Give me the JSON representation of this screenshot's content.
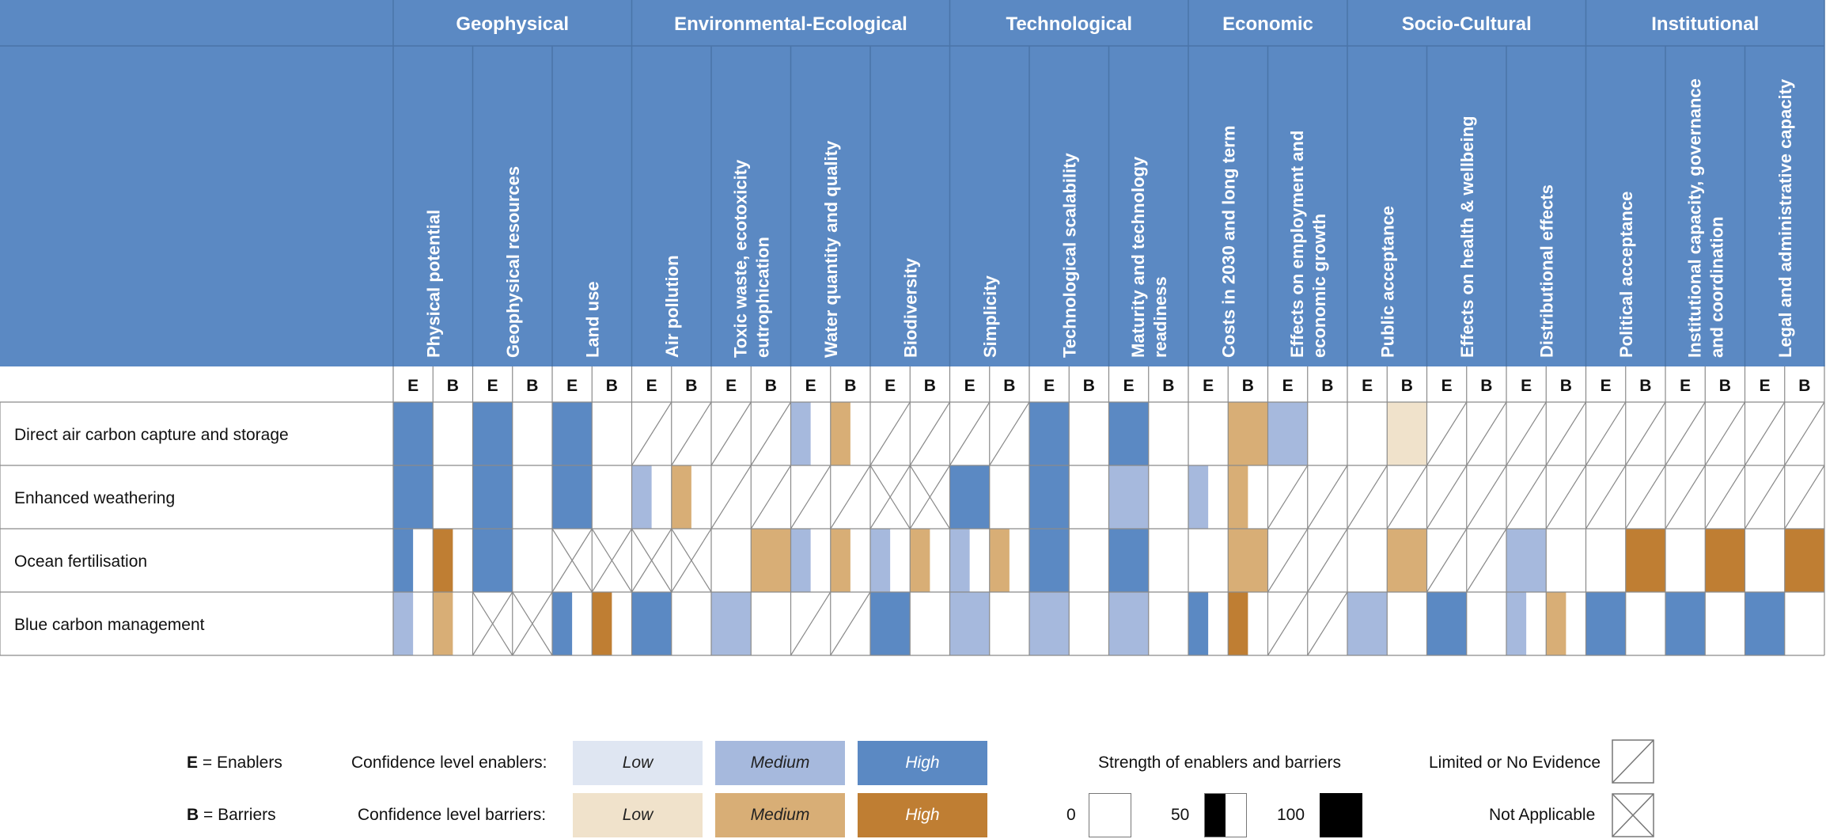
{
  "colors": {
    "header_bg": "#5b89c3",
    "header_line": "#4a74a8",
    "enabler": {
      "low": "#dfe6f2",
      "medium": "#a6b9dd",
      "high": "#5b89c3"
    },
    "barrier": {
      "low": "#f0e2cb",
      "medium": "#d8ae76",
      "high": "#bf7e33"
    },
    "grid": "#8a8a8a"
  },
  "eb_labels": {
    "e": "E",
    "b": "B"
  },
  "groups": [
    {
      "name": "Geophysical",
      "span": 3
    },
    {
      "name": "Environmental-Ecological",
      "span": 4
    },
    {
      "name": "Technological",
      "span": 3
    },
    {
      "name": "Economic",
      "span": 2
    },
    {
      "name": "Socio-Cultural",
      "span": 3
    },
    {
      "name": "Institutional",
      "span": 3
    }
  ],
  "columns": [
    [
      "Physical potential"
    ],
    [
      "Geophysical resources"
    ],
    [
      "Land use"
    ],
    [
      "Air pollution"
    ],
    [
      "Toxic waste, ecotoxicity",
      "eutrophication"
    ],
    [
      "Water quantity and quality"
    ],
    [
      "Biodiversity"
    ],
    [
      "Simplicity"
    ],
    [
      "Technological scalability"
    ],
    [
      "Maturity and technology",
      "readiness"
    ],
    [
      "Costs in 2030 and long term"
    ],
    [
      "Effects on employment  and",
      "economic growth"
    ],
    [
      "Public acceptance"
    ],
    [
      "Effects on health & wellbeing"
    ],
    [
      "Distributional effects"
    ],
    [
      "Political acceptance"
    ],
    [
      "Institutional capacity, governance",
      "and coordination"
    ],
    [
      "Legal and administrative capacity"
    ]
  ],
  "rows": [
    {
      "label": "Direct air carbon capture and storage",
      "cells": [
        [
          "H100",
          "0"
        ],
        [
          "H100",
          "0"
        ],
        [
          "H100",
          "0"
        ],
        [
          "L",
          "L"
        ],
        [
          "L",
          "L"
        ],
        [
          "M50",
          "M50"
        ],
        [
          "L",
          "L"
        ],
        [
          "L",
          "L"
        ],
        [
          "H100",
          "0"
        ],
        [
          "H100",
          "0"
        ],
        [
          "0",
          "M100"
        ],
        [
          "M100",
          "0"
        ],
        [
          "0",
          "L100"
        ],
        [
          "L",
          "L"
        ],
        [
          "L",
          "L"
        ],
        [
          "L",
          "L"
        ],
        [
          "L",
          "L"
        ],
        [
          "L",
          "L"
        ]
      ]
    },
    {
      "label": "Enhanced weathering",
      "cells": [
        [
          "H100",
          "0"
        ],
        [
          "H100",
          "0"
        ],
        [
          "H100",
          "0"
        ],
        [
          "M50",
          "M50"
        ],
        [
          "L",
          "L"
        ],
        [
          "L",
          "L"
        ],
        [
          "N",
          "N"
        ],
        [
          "H100",
          "0"
        ],
        [
          "H100",
          "0"
        ],
        [
          "M100",
          "0"
        ],
        [
          "M50",
          "M50"
        ],
        [
          "L",
          "L"
        ],
        [
          "L",
          "L"
        ],
        [
          "L",
          "L"
        ],
        [
          "L",
          "L"
        ],
        [
          "L",
          "L"
        ],
        [
          "L",
          "L"
        ],
        [
          "L",
          "L"
        ]
      ]
    },
    {
      "label": "Ocean fertilisation",
      "cells": [
        [
          "H50",
          "H50"
        ],
        [
          "H100",
          "0"
        ],
        [
          "N",
          "N"
        ],
        [
          "N",
          "N"
        ],
        [
          "0",
          "M100"
        ],
        [
          "M50",
          "M50"
        ],
        [
          "M50",
          "M50"
        ],
        [
          "M50",
          "M50"
        ],
        [
          "H100",
          "0"
        ],
        [
          "H100",
          "0"
        ],
        [
          "0",
          "M100"
        ],
        [
          "L",
          "L"
        ],
        [
          "0",
          "M100"
        ],
        [
          "L",
          "L"
        ],
        [
          "M100",
          "0"
        ],
        [
          "0",
          "H100"
        ],
        [
          "0",
          "H100"
        ],
        [
          "0",
          "H100"
        ]
      ]
    },
    {
      "label": "Blue carbon management",
      "cells": [
        [
          "M50",
          "M50"
        ],
        [
          "N",
          "N"
        ],
        [
          "H50",
          "H50"
        ],
        [
          "H100",
          "0"
        ],
        [
          "M100",
          "0"
        ],
        [
          "L",
          "L"
        ],
        [
          "H100",
          "0"
        ],
        [
          "M100",
          "0"
        ],
        [
          "M100",
          "0"
        ],
        [
          "M100",
          "0"
        ],
        [
          "H50",
          "H50"
        ],
        [
          "L",
          "L"
        ],
        [
          "M100",
          "0"
        ],
        [
          "H100",
          "0"
        ],
        [
          "M50",
          "M50"
        ],
        [
          "H100",
          "0"
        ],
        [
          "H100",
          "0"
        ],
        [
          "H100",
          "0"
        ]
      ]
    }
  ],
  "legend": {
    "e_key": "E",
    "e_text": " = Enablers",
    "b_key": "B",
    "b_text": " = Barriers",
    "conf_enablers": "Confidence level enablers:",
    "conf_barriers": "Confidence level barriers:",
    "low": "Low",
    "medium": "Medium",
    "high": "High",
    "strength_title": "Strength of enablers and barriers",
    "s0": "0",
    "s50": "50",
    "s100": "100",
    "limited": "Limited or No Evidence",
    "not_applicable": "Not Applicable"
  }
}
